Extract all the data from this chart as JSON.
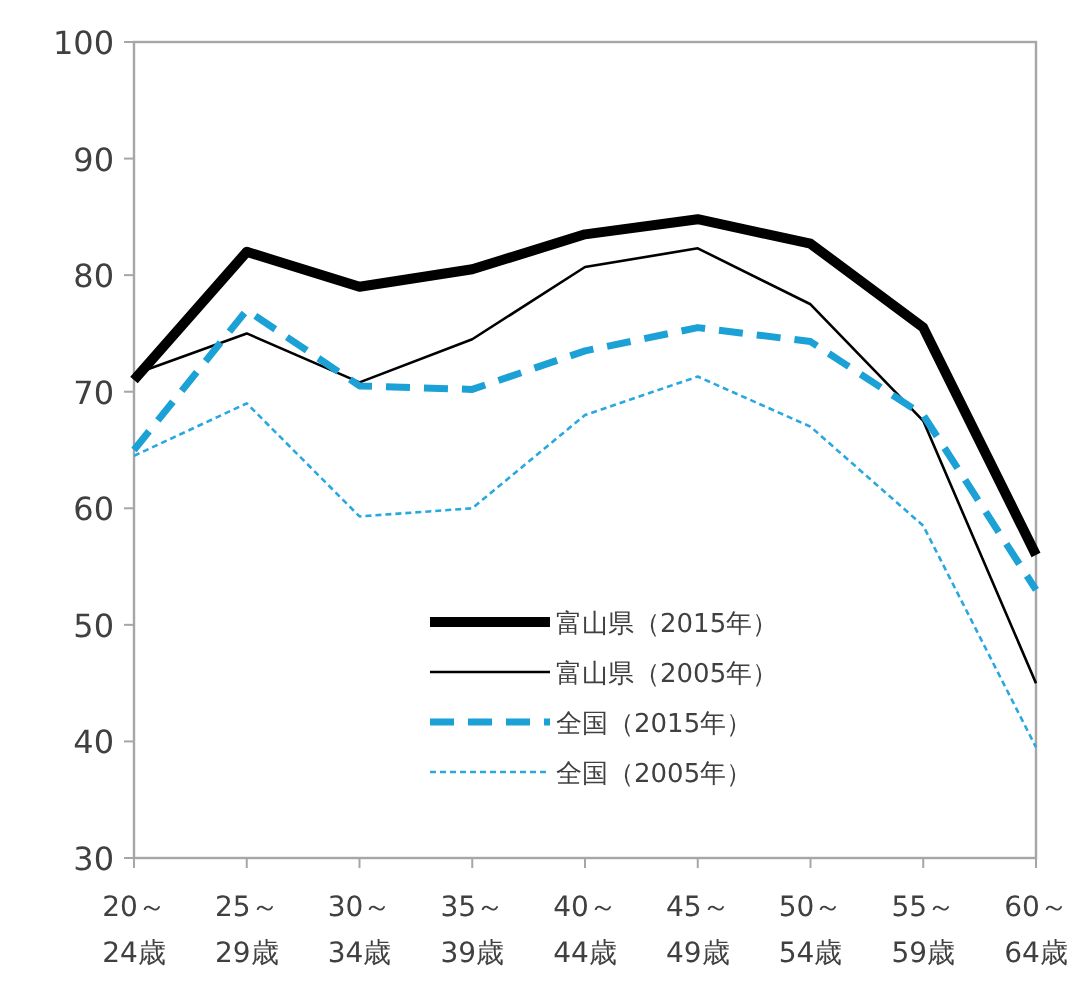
{
  "chart_data": {
    "type": "line",
    "categories": [
      "20～\n24歳",
      "25～\n29歳",
      "30～\n34歳",
      "35～\n39歳",
      "40～\n44歳",
      "45～\n49歳",
      "50～\n54歳",
      "55～\n59歳",
      "60～\n64歳"
    ],
    "ylim": [
      30,
      100
    ],
    "yticks": [
      30,
      40,
      50,
      60,
      70,
      80,
      90,
      100
    ],
    "grid": false,
    "legend": "bottom",
    "marker": "none",
    "series": [
      {
        "name": "富山県（2015年）",
        "color": "#000000",
        "line_style": "solid",
        "values": [
          71,
          82,
          79,
          80.5,
          83.5,
          84.8,
          82.7,
          75.5,
          56
        ]
      },
      {
        "name": "富山県（2005年）",
        "color": "#000000",
        "line_style": "solid",
        "values": [
          71.5,
          75,
          70.8,
          74.5,
          80.7,
          82.3,
          77.5,
          67.5,
          45
        ]
      },
      {
        "name": "全国（2015年）",
        "color": "#1ba1d6",
        "line_style": "dashed",
        "values": [
          65,
          77,
          70.5,
          70.2,
          73.5,
          75.5,
          74.3,
          68,
          53
        ]
      },
      {
        "name": "全国（2005年）",
        "color": "#29a8e0",
        "line_style": "dotted",
        "values": [
          64.5,
          69,
          59.3,
          60,
          68,
          71.3,
          67,
          58.5,
          39.5
        ]
      }
    ]
  }
}
